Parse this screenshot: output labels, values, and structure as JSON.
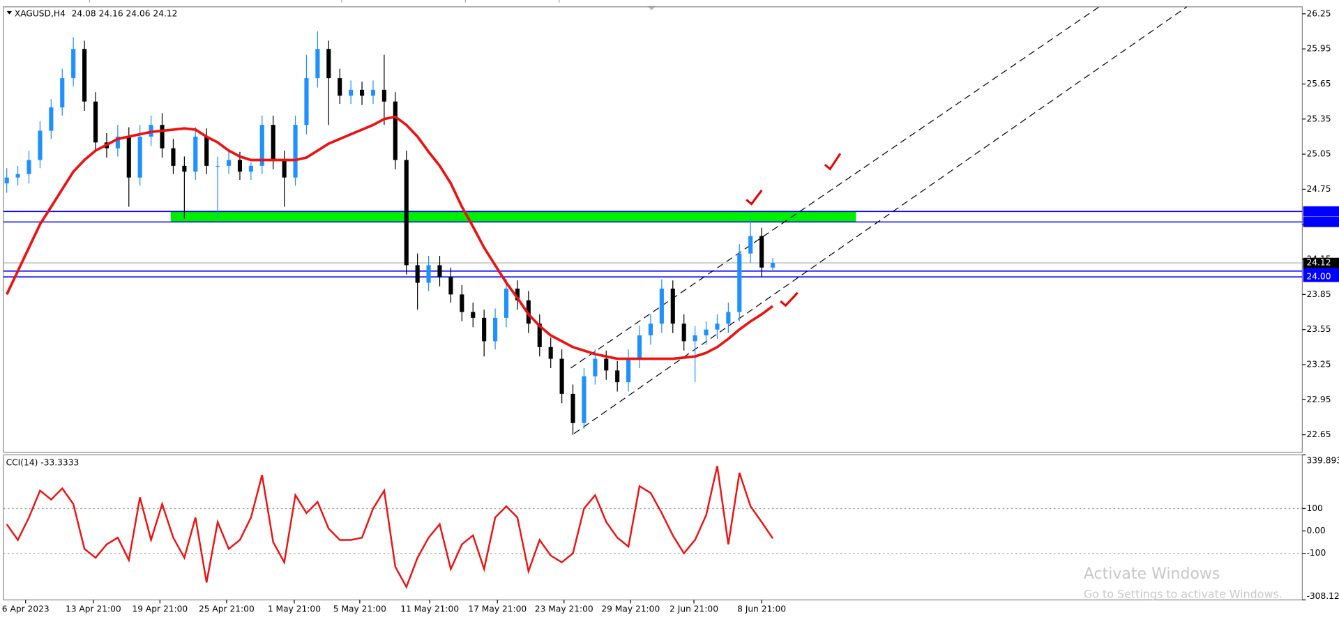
{
  "chart_data": [
    {
      "type": "candlestick",
      "title": "XAGUSD,H4",
      "xlim": [
        -0.3,
        116.7
      ],
      "ylim": [
        22.5,
        26.31
      ],
      "xticks": [
        {
          "value": 1.7,
          "label": "6 Apr 2023"
        },
        {
          "value": 7.8,
          "label": "13 Apr 21:00"
        },
        {
          "value": 13.8,
          "label": "19 Apr 21:00"
        },
        {
          "value": 19.8,
          "label": "25 Apr 21:00"
        },
        {
          "value": 25.9,
          "label": "1 May 21:00"
        },
        {
          "value": 31.8,
          "label": "5 May 21:00"
        },
        {
          "value": 38.1,
          "label": "11 May 21:00"
        },
        {
          "value": 44.2,
          "label": "17 May 21:00"
        },
        {
          "value": 50.2,
          "label": "23 May 21:00"
        },
        {
          "value": 56.2,
          "label": "29 May 21:00"
        },
        {
          "value": 61.9,
          "label": "2 Jun 21:00"
        },
        {
          "value": 68,
          "label": "8 Jun 21:00"
        }
      ],
      "yticks": [
        22.65,
        22.95,
        23.25,
        23.55,
        23.85,
        24.15,
        24.45,
        24.75,
        25.05,
        25.35,
        25.65,
        25.95,
        26.25
      ],
      "up_color": "#1e90ff",
      "down_color": "#000000",
      "open": [
        24.8,
        24.85,
        24.88,
        25.0,
        25.25,
        25.45,
        25.7,
        25.95,
        25.5,
        25.15,
        25.1,
        25.2,
        24.85,
        25.2,
        25.3,
        25.1,
        24.95,
        24.9,
        25.2,
        24.95,
        24.95,
        25.0,
        24.9,
        24.95,
        25.3,
        25.0,
        24.85,
        25.3,
        25.7,
        25.95,
        25.7,
        25.55,
        25.6,
        25.55,
        25.6,
        25.5,
        25.0,
        24.1,
        23.95,
        24.1,
        24.0,
        23.85,
        23.7,
        23.65,
        23.45,
        23.65,
        23.9,
        23.8,
        23.6,
        23.4,
        23.3,
        23.0,
        22.75,
        23.15,
        23.3,
        23.2,
        23.1,
        23.3,
        23.5,
        23.6,
        23.9,
        23.6,
        23.45,
        23.5,
        23.55,
        23.6,
        23.7,
        24.2,
        24.35,
        24.08
      ],
      "high": [
        24.93,
        24.95,
        25.08,
        25.33,
        25.52,
        25.78,
        26.05,
        26.02,
        25.58,
        25.23,
        25.3,
        25.28,
        25.3,
        25.38,
        25.4,
        25.18,
        25.03,
        25.28,
        25.27,
        25.03,
        25.08,
        25.07,
        24.98,
        25.38,
        25.38,
        25.08,
        25.38,
        25.9,
        26.1,
        26.02,
        25.78,
        25.68,
        25.67,
        25.68,
        25.9,
        25.58,
        25.08,
        24.2,
        24.18,
        24.18,
        24.08,
        23.93,
        23.78,
        23.72,
        23.73,
        23.98,
        23.97,
        23.88,
        23.68,
        23.48,
        23.38,
        23.08,
        23.22,
        23.38,
        23.37,
        23.28,
        23.38,
        23.58,
        23.68,
        23.98,
        23.97,
        23.68,
        23.58,
        23.62,
        23.68,
        23.78,
        24.28,
        24.5,
        24.42,
        24.16
      ],
      "low": [
        24.72,
        24.78,
        24.8,
        24.93,
        25.18,
        25.38,
        25.63,
        25.42,
        25.07,
        25.02,
        25.03,
        24.6,
        24.78,
        25.12,
        25.02,
        24.88,
        24.5,
        24.83,
        24.88,
        24.5,
        24.88,
        24.83,
        24.83,
        24.88,
        24.92,
        24.6,
        24.78,
        25.22,
        25.62,
        25.3,
        25.48,
        25.48,
        25.47,
        25.48,
        25.3,
        24.92,
        24.02,
        23.72,
        23.88,
        23.92,
        23.78,
        23.62,
        23.57,
        23.32,
        23.38,
        23.57,
        23.72,
        23.52,
        23.32,
        23.22,
        22.92,
        22.65,
        22.7,
        23.08,
        23.12,
        23.02,
        23.02,
        23.22,
        23.42,
        23.52,
        23.52,
        23.37,
        23.1,
        23.42,
        23.47,
        23.52,
        23.62,
        24.12,
        24.0,
        24.06
      ],
      "close": [
        24.85,
        24.88,
        25.0,
        25.25,
        25.45,
        25.7,
        25.95,
        25.5,
        25.15,
        25.1,
        25.2,
        24.85,
        25.2,
        25.3,
        25.1,
        24.95,
        24.9,
        25.2,
        24.95,
        24.95,
        25.0,
        24.9,
        24.95,
        25.3,
        25.0,
        24.85,
        25.3,
        25.7,
        25.95,
        25.7,
        25.55,
        25.6,
        25.55,
        25.6,
        25.5,
        25.0,
        24.1,
        23.95,
        24.1,
        24.0,
        23.85,
        23.7,
        23.65,
        23.45,
        23.65,
        23.9,
        23.8,
        23.6,
        23.4,
        23.3,
        23.0,
        22.75,
        23.15,
        23.3,
        23.2,
        23.1,
        23.3,
        23.5,
        23.6,
        23.9,
        23.6,
        23.45,
        23.5,
        23.55,
        23.6,
        23.7,
        24.2,
        24.35,
        24.08,
        24.12
      ],
      "ma_color": "#ee1111",
      "ma_values": [
        23.85,
        24.05,
        24.25,
        24.45,
        24.6,
        24.75,
        24.9,
        25.0,
        25.08,
        25.13,
        25.18,
        25.2,
        25.22,
        25.24,
        25.25,
        25.26,
        25.27,
        25.26,
        25.2,
        25.15,
        25.08,
        25.03,
        25.0,
        25.0,
        25.0,
        25.0,
        25.0,
        25.02,
        25.08,
        25.14,
        25.18,
        25.22,
        25.26,
        25.3,
        25.35,
        25.37,
        25.3,
        25.2,
        25.07,
        24.95,
        24.8,
        24.6,
        24.43,
        24.25,
        24.1,
        23.95,
        23.82,
        23.68,
        23.58,
        23.5,
        23.45,
        23.4,
        23.37,
        23.34,
        23.32,
        23.3,
        23.3,
        23.3,
        23.3,
        23.3,
        23.3,
        23.31,
        23.32,
        23.35,
        23.4,
        23.47,
        23.55,
        23.62,
        23.68,
        23.75
      ],
      "zone": {
        "x": [
          14.77,
          76.5
        ],
        "y": [
          24.47,
          24.56
        ],
        "color": "#00ee00"
      },
      "hlines": [
        {
          "value": 24.56,
          "color": "#0000ff"
        },
        {
          "value": 24.47,
          "color": "#0000ff"
        },
        {
          "value": 24.05,
          "color": "#0000ff"
        },
        {
          "value": 24,
          "label": "24.00",
          "color": "#0000ff"
        }
      ],
      "trendlines": [
        {
          "x": [
            51.1,
            106.3
          ],
          "y": [
            22.66,
            26.31
          ]
        },
        {
          "x": [
            50.8,
            98.4
          ],
          "y": [
            23.22,
            26.31
          ]
        }
      ]
    },
    {
      "type": "line",
      "title": "CCI(14)",
      "color": "#ee1111",
      "xlim": [
        -0.3,
        116.7
      ],
      "ylim": [
        -308.12,
        339.893
      ],
      "yticks": [
        339.893,
        100,
        {
          "value": 0,
          "label": "0.00"
        },
        -100,
        -308.12
      ],
      "levels": [
        100,
        -100
      ],
      "values": [
        30,
        -40,
        60,
        180,
        140,
        190,
        120,
        -80,
        -120,
        -60,
        -30,
        -130,
        150,
        -40,
        120,
        -30,
        -120,
        60,
        -230,
        40,
        -80,
        -40,
        60,
        250,
        -50,
        -140,
        160,
        80,
        130,
        10,
        -40,
        -40,
        -30,
        100,
        180,
        -160,
        -250,
        -120,
        -30,
        30,
        -170,
        -60,
        -20,
        -170,
        60,
        110,
        60,
        -180,
        -40,
        -110,
        -140,
        -100,
        100,
        160,
        40,
        -30,
        -70,
        200,
        170,
        80,
        -20,
        -100,
        -40,
        70,
        290,
        -60,
        260,
        110,
        40,
        -33.3333
      ]
    }
  ],
  "watermark": {
    "line1": "Activate Windows",
    "line2": "Go to Settings to activate Windows."
  }
}
